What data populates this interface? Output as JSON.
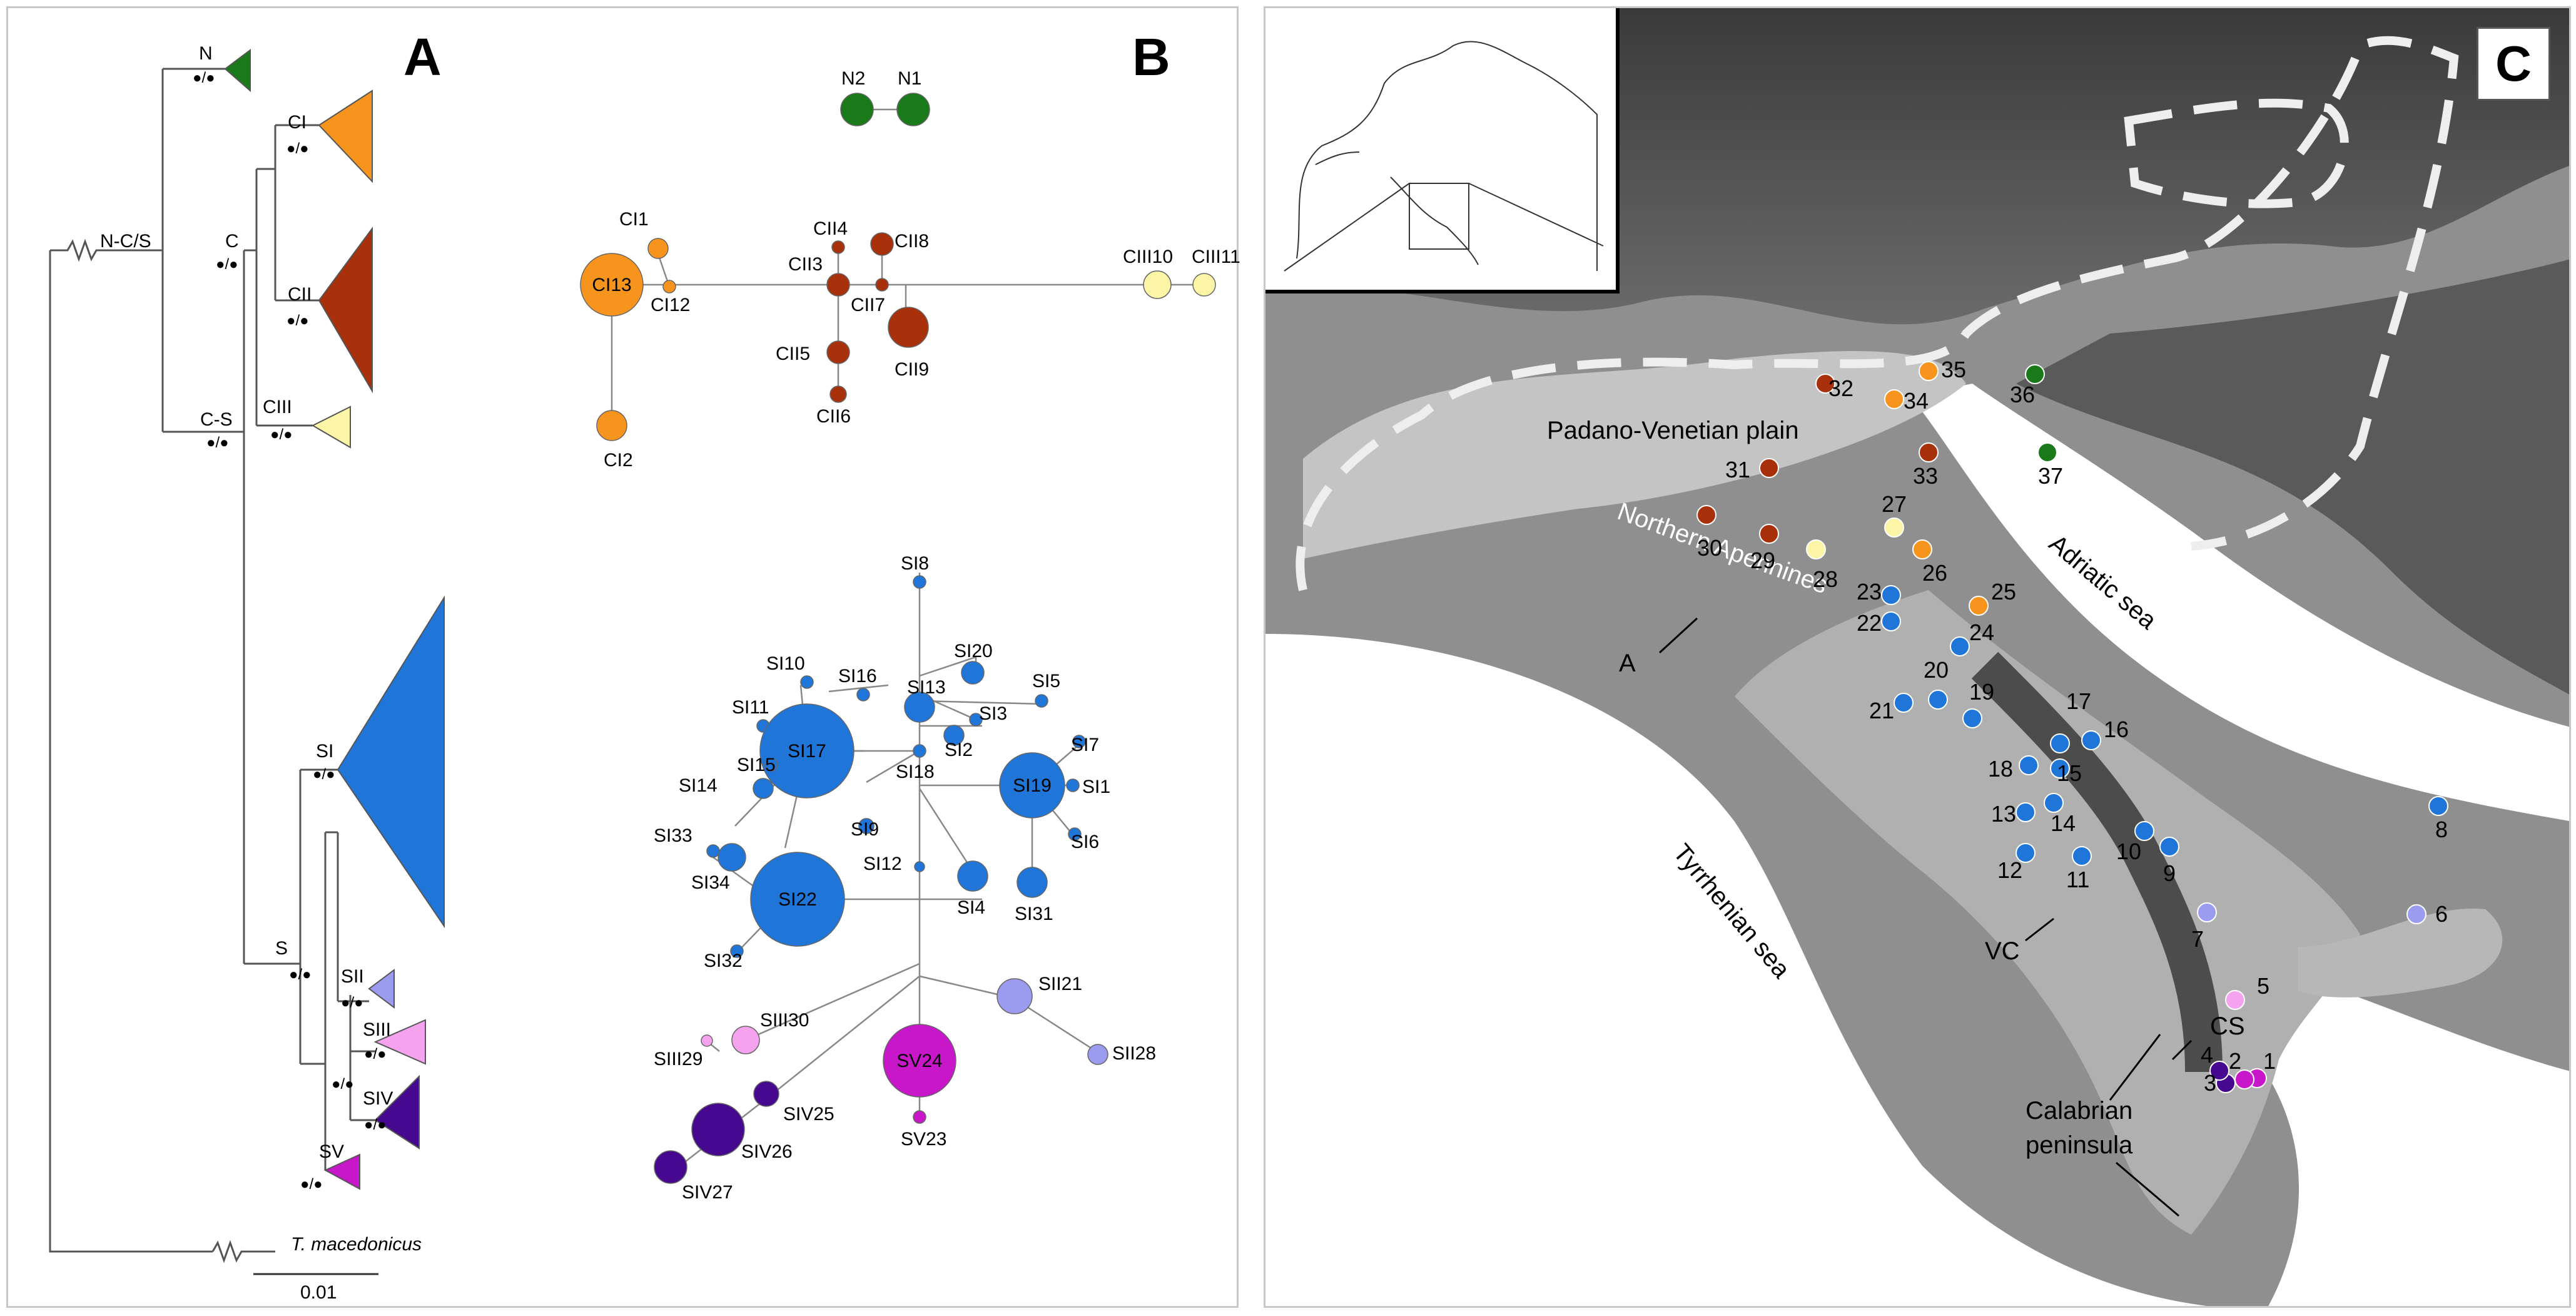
{
  "colors": {
    "N": "#1a7a1a",
    "CI": "#f7941d",
    "CII": "#a8300a",
    "CIII": "#fdf5a6",
    "SI": "#1f76d8",
    "SII": "#9b9cf0",
    "SIII": "#f6a3ef",
    "SIV": "#46088f",
    "SV": "#c717c8"
  },
  "panel_a": {
    "letter": "A",
    "nodes": {
      "ncs": "N-C/S",
      "c": "C",
      "cs": "C-S",
      "s": "S"
    },
    "clades": [
      "N",
      "CI",
      "CII",
      "CIII",
      "SI",
      "SII",
      "SIII",
      "SIV",
      "SV"
    ],
    "outgroup": "T. macedonicus",
    "scale": "0.01",
    "support": "●/●"
  },
  "panel_b": {
    "letter": "B",
    "haplotypes": [
      {
        "id": "N2",
        "color": "N"
      },
      {
        "id": "N1",
        "color": "N"
      },
      {
        "id": "CI1",
        "color": "CI"
      },
      {
        "id": "CI13",
        "color": "CI"
      },
      {
        "id": "CI12",
        "color": "CI"
      },
      {
        "id": "CI2",
        "color": "CI"
      },
      {
        "id": "CII4",
        "color": "CII"
      },
      {
        "id": "CII8",
        "color": "CII"
      },
      {
        "id": "CII3",
        "color": "CII"
      },
      {
        "id": "CII7",
        "color": "CII"
      },
      {
        "id": "CII5",
        "color": "CII"
      },
      {
        "id": "CII6",
        "color": "CII"
      },
      {
        "id": "CII9",
        "color": "CII"
      },
      {
        "id": "CIII10",
        "color": "CIII"
      },
      {
        "id": "CIII11",
        "color": "CIII"
      },
      {
        "id": "SI8",
        "color": "SI"
      },
      {
        "id": "SI10",
        "color": "SI"
      },
      {
        "id": "SI16",
        "color": "SI"
      },
      {
        "id": "SI20",
        "color": "SI"
      },
      {
        "id": "SI13",
        "color": "SI"
      },
      {
        "id": "SI5",
        "color": "SI"
      },
      {
        "id": "SI11",
        "color": "SI"
      },
      {
        "id": "SI3",
        "color": "SI"
      },
      {
        "id": "SI17",
        "color": "SI"
      },
      {
        "id": "SI2",
        "color": "SI"
      },
      {
        "id": "SI7",
        "color": "SI"
      },
      {
        "id": "SI15",
        "color": "SI"
      },
      {
        "id": "SI18",
        "color": "SI"
      },
      {
        "id": "SI19",
        "color": "SI"
      },
      {
        "id": "SI1",
        "color": "SI"
      },
      {
        "id": "SI14",
        "color": "SI"
      },
      {
        "id": "SI9",
        "color": "SI"
      },
      {
        "id": "SI6",
        "color": "SI"
      },
      {
        "id": "SI33",
        "color": "SI"
      },
      {
        "id": "SI12",
        "color": "SI"
      },
      {
        "id": "SI34",
        "color": "SI"
      },
      {
        "id": "SI22",
        "color": "SI"
      },
      {
        "id": "SI4",
        "color": "SI"
      },
      {
        "id": "SI31",
        "color": "SI"
      },
      {
        "id": "SI32",
        "color": "SI"
      },
      {
        "id": "SII21",
        "color": "SII"
      },
      {
        "id": "SII28",
        "color": "SII"
      },
      {
        "id": "SIII30",
        "color": "SIII"
      },
      {
        "id": "SIII29",
        "color": "SIII"
      },
      {
        "id": "SV24",
        "color": "SV"
      },
      {
        "id": "SV23",
        "color": "SV"
      },
      {
        "id": "SIV25",
        "color": "SIV"
      },
      {
        "id": "SIV26",
        "color": "SIV"
      },
      {
        "id": "SIV27",
        "color": "SIV"
      }
    ]
  },
  "panel_c": {
    "letter": "C",
    "places": {
      "plain": "Padano-Venetian plain",
      "apennines": "Northern Apennines",
      "adriatic": "Adriatic sea",
      "tyrrhenian": "Tyrrhenian sea",
      "a": "A",
      "vc": "VC",
      "cs": "CS",
      "calabria": "Calabrian\npeninsula"
    },
    "sites": [
      {
        "n": "1",
        "color": "SV"
      },
      {
        "n": "2",
        "color": "SV"
      },
      {
        "n": "3",
        "color": "SIV"
      },
      {
        "n": "4",
        "color": "SIV"
      },
      {
        "n": "5",
        "color": "SIII"
      },
      {
        "n": "6",
        "color": "SII"
      },
      {
        "n": "7",
        "color": "SII"
      },
      {
        "n": "8",
        "color": "SI"
      },
      {
        "n": "9",
        "color": "SI"
      },
      {
        "n": "10",
        "color": "SI"
      },
      {
        "n": "11",
        "color": "SI"
      },
      {
        "n": "12",
        "color": "SI"
      },
      {
        "n": "13",
        "color": "SI"
      },
      {
        "n": "14",
        "color": "SI"
      },
      {
        "n": "15",
        "color": "SI"
      },
      {
        "n": "16",
        "color": "SI"
      },
      {
        "n": "17",
        "color": "SI"
      },
      {
        "n": "18",
        "color": "SI"
      },
      {
        "n": "19",
        "color": "SI"
      },
      {
        "n": "20",
        "color": "SI"
      },
      {
        "n": "21",
        "color": "SI"
      },
      {
        "n": "22",
        "color": "SI"
      },
      {
        "n": "23",
        "color": "SI"
      },
      {
        "n": "24",
        "color": "SI"
      },
      {
        "n": "25",
        "color": "CI"
      },
      {
        "n": "26",
        "color": "CI"
      },
      {
        "n": "27",
        "color": "CIII"
      },
      {
        "n": "28",
        "color": "CIII"
      },
      {
        "n": "29",
        "color": "CII"
      },
      {
        "n": "30",
        "color": "CII"
      },
      {
        "n": "31",
        "color": "CII"
      },
      {
        "n": "32",
        "color": "CII"
      },
      {
        "n": "33",
        "color": "CII"
      },
      {
        "n": "34",
        "color": "CI"
      },
      {
        "n": "35",
        "color": "CI"
      },
      {
        "n": "36",
        "color": "N"
      },
      {
        "n": "37",
        "color": "N"
      }
    ]
  }
}
